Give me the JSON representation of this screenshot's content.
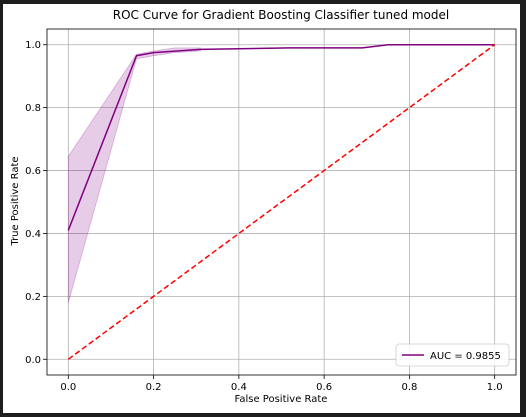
{
  "chart_data": {
    "type": "line",
    "title": "ROC Curve for Gradient Boosting Classifier tuned model",
    "xlabel": "False Positive Rate",
    "ylabel": "True Positive Rate",
    "xlim": [
      -0.05,
      1.05
    ],
    "ylim": [
      -0.05,
      1.05
    ],
    "xticks": [
      0.0,
      0.2,
      0.4,
      0.6,
      0.8,
      1.0
    ],
    "xtick_labels": [
      "0.0",
      "0.2",
      "0.4",
      "0.6",
      "0.8",
      "1.0"
    ],
    "yticks": [
      0.0,
      0.2,
      0.4,
      0.6,
      0.8,
      1.0
    ],
    "ytick_labels": [
      "0.0",
      "0.2",
      "0.4",
      "0.6",
      "0.8",
      "1.0"
    ],
    "grid": true,
    "legend_position": "lower-right",
    "series": [
      {
        "name": "AUC = 0.9855",
        "color": "#800080",
        "style": "solid",
        "x": [
          0.0,
          0.16,
          0.2,
          0.31,
          0.52,
          0.69,
          0.75,
          0.85,
          1.0
        ],
        "y": [
          0.41,
          0.965,
          0.975,
          0.985,
          0.99,
          0.99,
          1.0,
          1.0,
          1.0
        ],
        "band_upper": [
          0.645,
          0.97,
          0.98,
          0.99,
          0.99
        ],
        "band_lower": [
          0.18,
          0.955,
          0.965,
          0.975,
          0.98
        ],
        "band_x": [
          0.0,
          0.16,
          0.2,
          0.25,
          0.31
        ],
        "band_color": "#800080"
      },
      {
        "color": "#ff0000",
        "style": "dashed",
        "x": [
          0.0,
          1.0
        ],
        "y": [
          0.0,
          1.0
        ]
      }
    ]
  }
}
